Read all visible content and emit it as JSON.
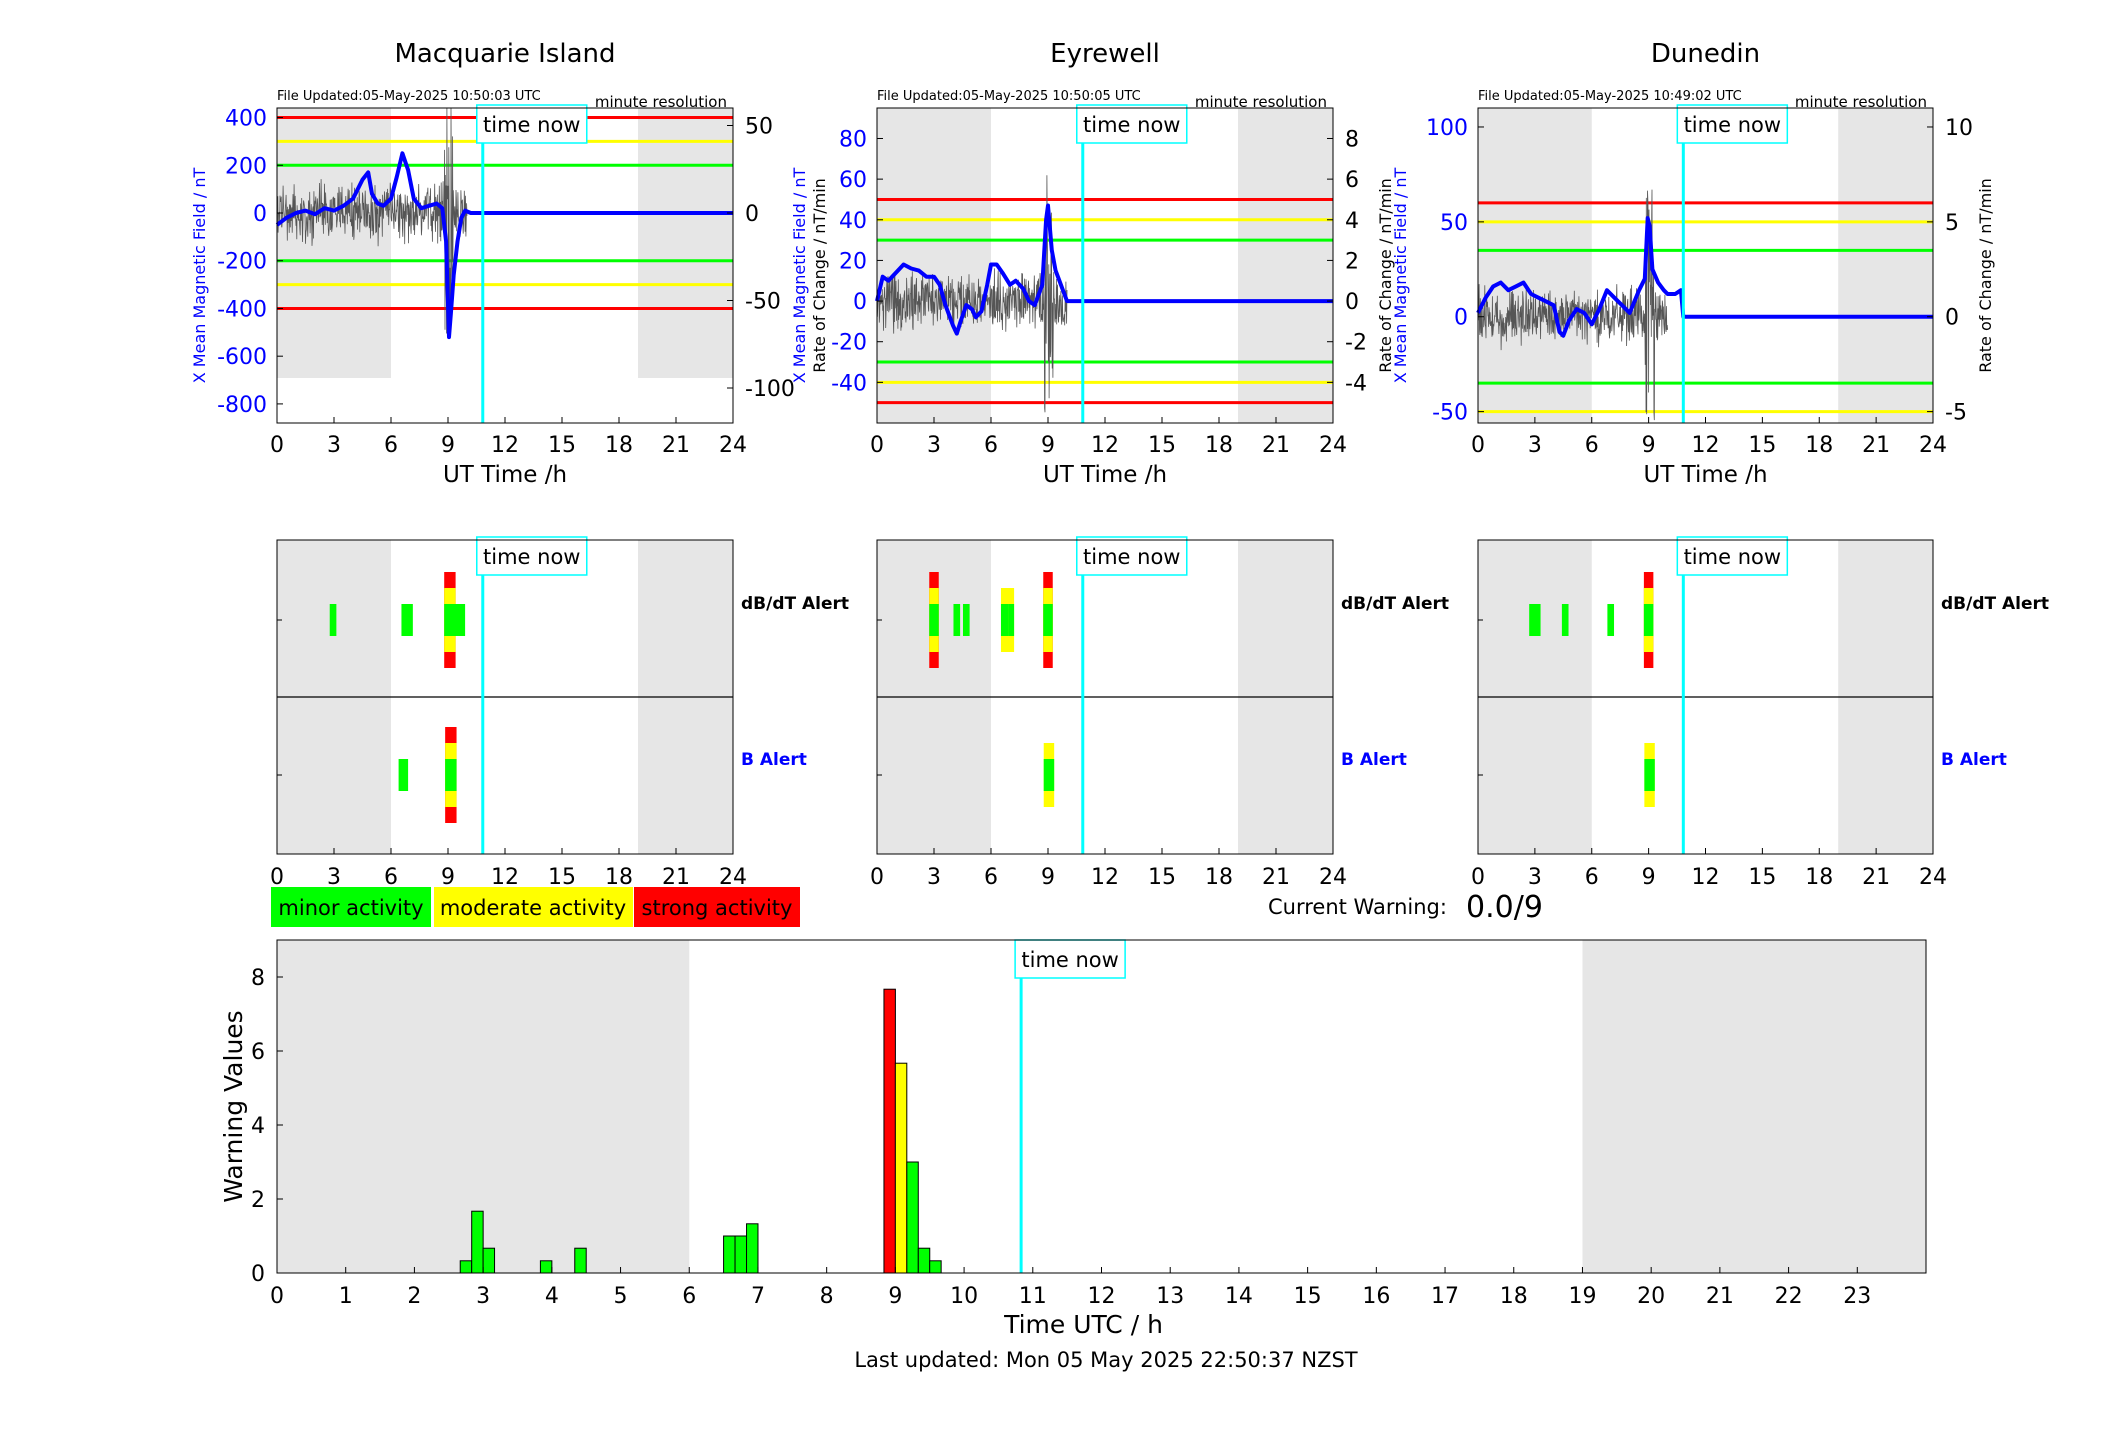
{
  "time_now_label": "time now",
  "x_ticks_24": [
    "0",
    "3",
    "6",
    "9",
    "12",
    "15",
    "18",
    "21",
    "24"
  ],
  "x_ticks_hours": [
    "0",
    "1",
    "2",
    "3",
    "4",
    "5",
    "6",
    "7",
    "8",
    "9",
    "10",
    "11",
    "12",
    "13",
    "14",
    "15",
    "16",
    "17",
    "18",
    "19",
    "20",
    "21",
    "22",
    "23"
  ],
  "resolution_label": "minute resolution",
  "ut_time_label": "UT Time /h",
  "colors": {
    "red": "#ff0000",
    "yellow": "#ffff00",
    "green": "#00ff00",
    "blue": "#0000ff",
    "cyan": "#00ffff",
    "night": "#e6e6e6",
    "trace_gray": "#555555"
  },
  "stations": [
    {
      "name": "Macquarie Island",
      "file_updated": "File Updated:05-May-2025 10:50:03 UTC",
      "left_label": "X Mean Magnetic Field / nT",
      "right_label": "Rate of Change / nT/min",
      "left_ticks": [
        "400",
        "200",
        "0",
        "-200",
        "-400",
        "-600",
        "-800"
      ],
      "left_tick_values": [
        400,
        200,
        0,
        -200,
        -400,
        -600,
        -800
      ],
      "right_ticks": [
        "50",
        "0",
        "-50",
        "-100"
      ],
      "right_tick_values": [
        50,
        0,
        -50,
        -100
      ],
      "thresholds": {
        "red": 400,
        "yellow": 300,
        "green": 200
      },
      "alerts": {
        "dbdt": [
          {
            "t": 2.95,
            "w": 0.35,
            "levels": [
              "green"
            ]
          },
          {
            "t": 6.85,
            "w": 0.6,
            "levels": [
              "green"
            ]
          },
          {
            "t": 9.1,
            "w": 0.6,
            "levels": [
              "red",
              "yellow",
              "green"
            ]
          },
          {
            "t": 9.6,
            "w": 0.6,
            "levels": [
              "green"
            ]
          }
        ],
        "b": [
          {
            "t": 6.65,
            "w": 0.5,
            "levels": [
              "green"
            ]
          },
          {
            "t": 9.15,
            "w": 0.6,
            "levels": [
              "red",
              "yellow",
              "green"
            ]
          }
        ]
      }
    },
    {
      "name": "Eyrewell",
      "file_updated": "File Updated:05-May-2025 10:50:05 UTC",
      "left_label": "X Mean Magnetic Field / nT",
      "right_label": "Rate of Change / nT/min",
      "left_ticks": [
        "80",
        "60",
        "40",
        "20",
        "0",
        "-20",
        "-40"
      ],
      "left_tick_values": [
        80,
        60,
        40,
        20,
        0,
        -20,
        -40
      ],
      "right_ticks": [
        "8",
        "6",
        "4",
        "2",
        "0",
        "-2",
        "-4"
      ],
      "right_tick_values": [
        8,
        6,
        4,
        2,
        0,
        -2,
        -4
      ],
      "thresholds": {
        "red": 50,
        "yellow": 40,
        "green": 30
      },
      "alerts": {
        "dbdt": [
          {
            "t": 3.0,
            "w": 0.5,
            "levels": [
              "red",
              "yellow",
              "green"
            ]
          },
          {
            "t": 4.2,
            "w": 0.35,
            "levels": [
              "green"
            ]
          },
          {
            "t": 4.7,
            "w": 0.35,
            "levels": [
              "green"
            ]
          },
          {
            "t": 6.8,
            "w": 0.55,
            "levels": [
              "yellow",
              "green"
            ]
          },
          {
            "t": 7.05,
            "w": 0.3,
            "levels": [
              "yellow",
              "green"
            ]
          },
          {
            "t": 9.0,
            "w": 0.5,
            "levels": [
              "red",
              "yellow",
              "green"
            ]
          }
        ],
        "b": [
          {
            "t": 9.05,
            "w": 0.55,
            "levels": [
              "yellow",
              "green"
            ]
          }
        ]
      }
    },
    {
      "name": "Dunedin",
      "file_updated": "File Updated:05-May-2025 10:49:02 UTC",
      "left_label": "X Mean Magnetic Field / nT",
      "right_label": "Rate of Change / nT/min",
      "left_ticks": [
        "100",
        "50",
        "0",
        "-50"
      ],
      "left_tick_values": [
        100,
        50,
        0,
        -50
      ],
      "right_ticks": [
        "10",
        "5",
        "0",
        "-5"
      ],
      "right_tick_values": [
        10,
        5,
        0,
        -5
      ],
      "thresholds": {
        "red": 60,
        "yellow": 50,
        "green": 35
      },
      "alerts": {
        "dbdt": [
          {
            "t": 3.0,
            "w": 0.6,
            "levels": [
              "green"
            ]
          },
          {
            "t": 4.6,
            "w": 0.35,
            "levels": [
              "green"
            ]
          },
          {
            "t": 7.0,
            "w": 0.35,
            "levels": [
              "green"
            ]
          },
          {
            "t": 9.0,
            "w": 0.5,
            "levels": [
              "red",
              "yellow",
              "green"
            ]
          }
        ],
        "b": [
          {
            "t": 9.05,
            "w": 0.55,
            "levels": [
              "yellow",
              "green"
            ]
          }
        ]
      }
    }
  ],
  "alert_labels": {
    "dbdt": "dB/dT Alert",
    "b": "B Alert"
  },
  "legend": {
    "minor": "minor activity",
    "moderate": "moderate activity",
    "strong": "strong activity"
  },
  "current_warning": {
    "label": "Current Warning:",
    "value": "0.0/9"
  },
  "chart_data": {
    "type": "bar",
    "xlabel": "Time UTC / h",
    "ylabel": "Warning Values",
    "xlim": [
      0,
      24
    ],
    "ylim": [
      0,
      9
    ],
    "y_ticks": [
      "0",
      "2",
      "4",
      "6",
      "8"
    ],
    "night_shading_hours": [
      [
        0,
        6
      ],
      [
        19,
        24
      ]
    ],
    "time_now_hour": 10.83,
    "bars": [
      {
        "x": 2.75,
        "y": 0.33,
        "level": "green"
      },
      {
        "x": 2.917,
        "y": 1.67,
        "level": "green"
      },
      {
        "x": 3.083,
        "y": 0.67,
        "level": "green"
      },
      {
        "x": 3.917,
        "y": 0.33,
        "level": "green"
      },
      {
        "x": 4.417,
        "y": 0.67,
        "level": "green"
      },
      {
        "x": 6.583,
        "y": 1.0,
        "level": "green"
      },
      {
        "x": 6.75,
        "y": 1.0,
        "level": "green"
      },
      {
        "x": 6.917,
        "y": 1.33,
        "level": "green"
      },
      {
        "x": 8.917,
        "y": 7.67,
        "level": "red"
      },
      {
        "x": 9.083,
        "y": 5.67,
        "level": "yellow"
      },
      {
        "x": 9.25,
        "y": 3.0,
        "level": "green"
      },
      {
        "x": 9.417,
        "y": 0.67,
        "level": "green"
      },
      {
        "x": 9.583,
        "y": 0.33,
        "level": "green"
      }
    ]
  },
  "last_updated": "Last updated: Mon 05 May 2025 22:50:37 NZST"
}
